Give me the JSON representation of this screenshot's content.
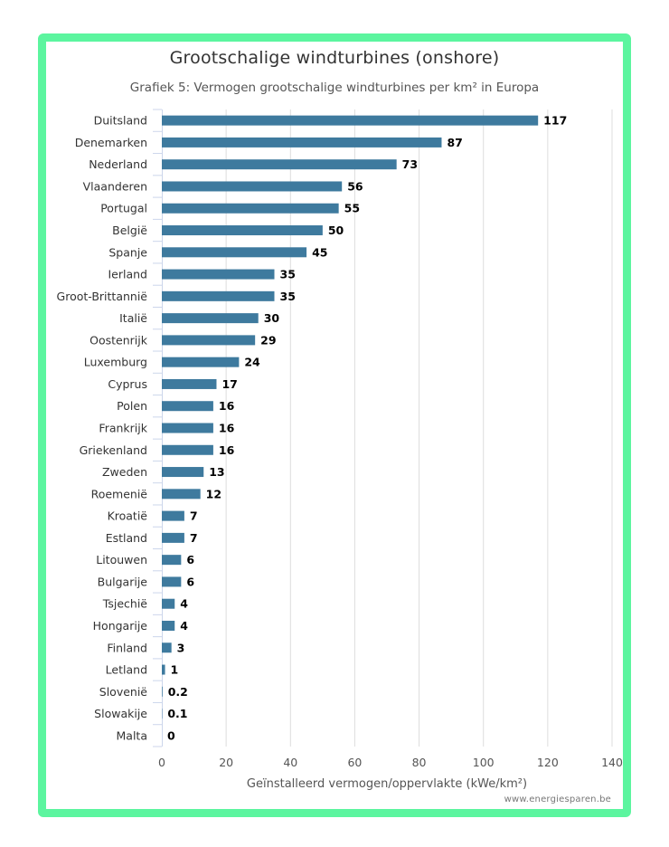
{
  "chart_data": {
    "type": "bar",
    "orientation": "horizontal",
    "title": "Grootschalige windturbines (onshore)",
    "subtitle": "Grafiek 5: Vermogen grootschalige windturbines per km² in Europa",
    "xlabel": "Geïnstalleerd vermogen/oppervlakte (kWe/km²)",
    "xlim": [
      0,
      140
    ],
    "xticks": [
      0,
      20,
      40,
      60,
      80,
      100,
      120,
      140
    ],
    "grid": true,
    "bar_color": "#3e7a9e",
    "categories": [
      "Duitsland",
      "Denemarken",
      "Nederland",
      "Vlaanderen",
      "Portugal",
      "België",
      "Spanje",
      "Ierland",
      "Groot-Brittannië",
      "Italië",
      "Oostenrijk",
      "Luxemburg",
      "Cyprus",
      "Polen",
      "Frankrijk",
      "Griekenland",
      "Zweden",
      "Roemenië",
      "Kroatië",
      "Estland",
      "Litouwen",
      "Bulgarije",
      "Tsjechië",
      "Hongarije",
      "Finland",
      "Letland",
      "Slovenië",
      "Slowakije",
      "Malta"
    ],
    "values": [
      117,
      87,
      73,
      56,
      55,
      50,
      45,
      35,
      35,
      30,
      29,
      24,
      17,
      16,
      16,
      16,
      13,
      12,
      7,
      7,
      6,
      6,
      4,
      4,
      3,
      1,
      0.2,
      0.1,
      0
    ]
  },
  "credit": "www.energiesparen.be",
  "frame_color": "#5cf59f"
}
